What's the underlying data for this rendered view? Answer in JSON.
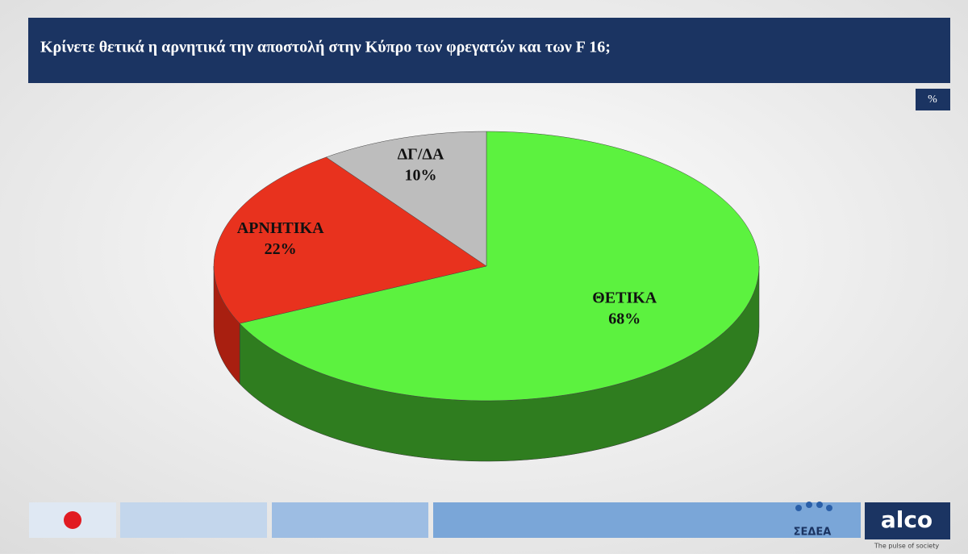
{
  "chart_data": {
    "type": "pie",
    "title": "Κρίνετε θετικά η αρνητικά την αποστολή στην Κύπρο των  φρεγατών και των F 16;",
    "unit": "%",
    "categories": [
      "ΘΕΤΙΚΑ",
      "ΑΡΝΗΤΙΚΑ",
      "ΔΓ/ΔΑ"
    ],
    "values": [
      68,
      22,
      10
    ],
    "value_labels": [
      "68%",
      "22%",
      "10%"
    ],
    "colors": [
      "#5cf23f",
      "#e8321e",
      "#bdbdbd"
    ],
    "side_colors": [
      "#2f7d1f",
      "#a81f10",
      "#7a7a7a"
    ]
  },
  "footer": {
    "brand": "alco",
    "tagline": "The pulse of society",
    "partner": "ΣΕΔΕΑ"
  }
}
